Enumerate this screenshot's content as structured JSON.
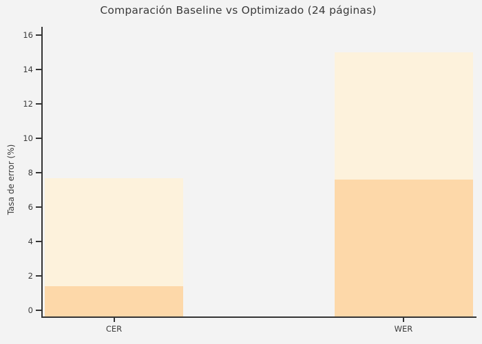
{
  "title": "Comparación Baseline vs Optimizado (24 páginas)",
  "colors": {
    "background": "#f3f3f3",
    "baseline_bar": "#fdf2dc",
    "optimizado_bar": "#fdd8a9",
    "axis": "#333333",
    "text": "#3a3a3a"
  },
  "chart_data": {
    "type": "bar",
    "title": "Comparación Baseline vs Optimizado (24 páginas)",
    "categories": [
      "CER",
      "WER"
    ],
    "series": [
      {
        "name": "Baseline",
        "color": "#fdf2dc",
        "values": [
          7.7,
          15.0
        ]
      },
      {
        "name": "Optimizado",
        "color": "#fdd8a9",
        "values": [
          1.4,
          7.6
        ]
      }
    ],
    "layout_hint": "overlaid bars (Optimizado drawn in front of Baseline), no legend, no grid, left and bottom spines only, outward ticks",
    "xlabel": "",
    "ylabel": "Tasa de error (%)",
    "ylim": [
      0,
      16
    ],
    "yticks": [
      0,
      2,
      4,
      6,
      8,
      10,
      12,
      14,
      16
    ],
    "grid": false,
    "legend": "none"
  }
}
